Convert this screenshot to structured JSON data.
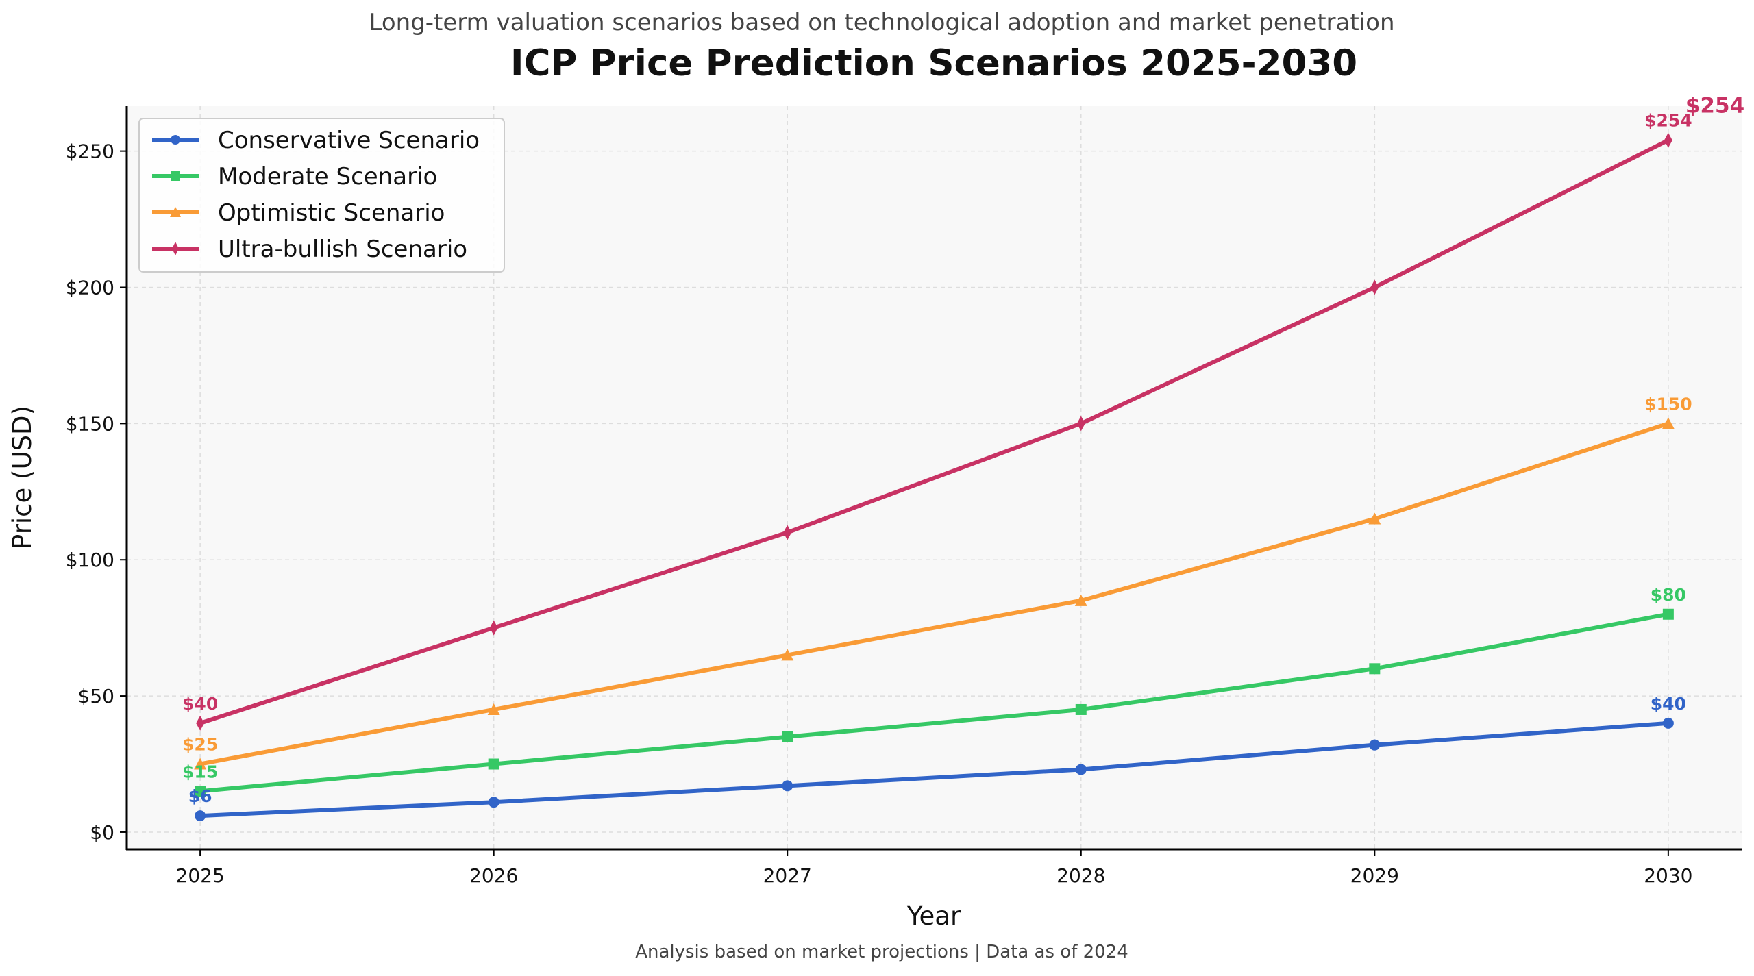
{
  "chart_data": {
    "type": "line",
    "title": "ICP Price Prediction Scenarios 2025-2030",
    "subtitle": "Long-term valuation scenarios based on technological adoption and market penetration",
    "xlabel": "Year",
    "ylabel": "Price (USD)",
    "footer": "Analysis based on market projections | Data as of 2024",
    "x": [
      2025,
      2026,
      2027,
      2028,
      2029,
      2030
    ],
    "xticks": [
      "2025",
      "2026",
      "2027",
      "2028",
      "2029",
      "2030"
    ],
    "yticks": [
      0,
      50,
      100,
      150,
      200,
      250
    ],
    "ytick_labels": [
      "$0",
      "$50",
      "$100",
      "$150",
      "$200",
      "$250"
    ],
    "xlim": [
      2024.75,
      2030.25
    ],
    "ylim": [
      -6.3,
      266.5
    ],
    "grid": true,
    "legend_position": "top-left",
    "background": "#f8f8f8",
    "series": [
      {
        "name": "Conservative Scenario",
        "color": "#3164c8",
        "marker": "circle",
        "values": [
          6,
          11,
          17,
          23,
          32,
          40
        ],
        "labels": [
          "$6",
          "$40"
        ]
      },
      {
        "name": "Moderate Scenario",
        "color": "#36c865",
        "marker": "square",
        "values": [
          15,
          25,
          35,
          45,
          60,
          80
        ],
        "labels": [
          "$15",
          "$80"
        ]
      },
      {
        "name": "Optimistic Scenario",
        "color": "#f99b36",
        "marker": "triangle",
        "values": [
          25,
          45,
          65,
          85,
          115,
          150
        ],
        "labels": [
          "$25",
          "$150"
        ]
      },
      {
        "name": "Ultra-bullish Scenario",
        "color": "#c83264",
        "marker": "diamond",
        "values": [
          40,
          75,
          110,
          150,
          200,
          254
        ],
        "labels": [
          "$40",
          "$254"
        ]
      }
    ],
    "annotations": [
      {
        "text": "$254",
        "x": 2030,
        "y": 254,
        "color": "#c83264"
      }
    ]
  }
}
